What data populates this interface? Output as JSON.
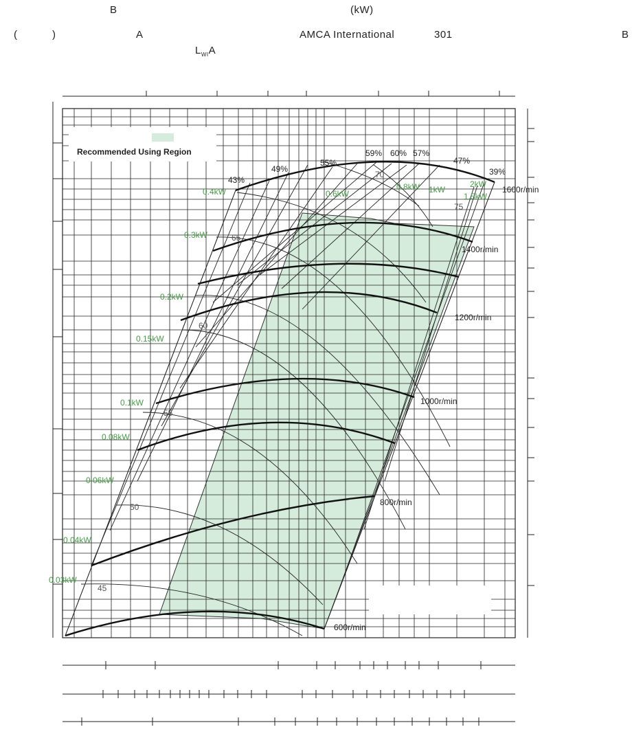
{
  "header": {
    "line1_a": "B",
    "line1_b": "(kW)",
    "line2_a": "(",
    "line2_b": ")",
    "line2_c": "A",
    "line2_d": "AMCA International",
    "line2_e": "301",
    "line2_f": "B",
    "lwa_main": "L",
    "lwa_sub": "WI",
    "lwa_end": "A"
  },
  "legend": {
    "label": "Recommended Using Region",
    "color": "#d5ecdc"
  },
  "colors": {
    "grid": "#222222",
    "power_label": "#4a9a4a",
    "region": "#d5ecdc"
  },
  "chart_data": {
    "type": "fan-performance",
    "speed_curves": [
      "600r/min",
      "800r/min",
      "1000r/min",
      "1200r/min",
      "1400r/min",
      "1600r/min"
    ],
    "efficiency_labels": [
      "43%",
      "49%",
      "55%",
      "59%",
      "60%",
      "57%",
      "47%",
      "39%"
    ],
    "power_labels": [
      "0.03kW",
      "0.04kW",
      "0.06kW",
      "0.08kW",
      "0.1kW",
      "0.15kW",
      "0.2kW",
      "0.3kW",
      "0.4kW",
      "0.6kW",
      "0.8kW",
      "1kW",
      "1.5kW",
      "2kW"
    ],
    "noise_labels": [
      "45",
      "50",
      "55",
      "60",
      "65",
      "70",
      "75"
    ]
  }
}
